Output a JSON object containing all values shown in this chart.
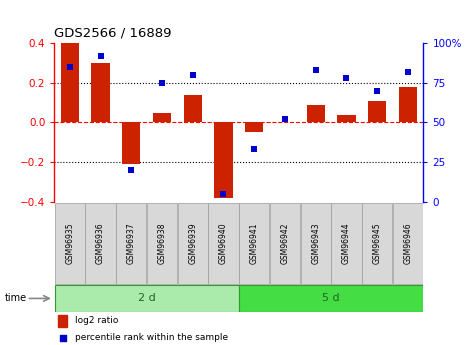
{
  "title": "GDS2566 / 16889",
  "samples": [
    "GSM96935",
    "GSM96936",
    "GSM96937",
    "GSM96938",
    "GSM96939",
    "GSM96940",
    "GSM96941",
    "GSM96942",
    "GSM96943",
    "GSM96944",
    "GSM96945",
    "GSM96946"
  ],
  "log2_ratio": [
    0.4,
    0.3,
    -0.21,
    0.05,
    0.14,
    -0.38,
    -0.05,
    0.0,
    0.09,
    0.04,
    0.11,
    0.18
  ],
  "percentile_rank": [
    85,
    92,
    20,
    75,
    80,
    5,
    33,
    52,
    83,
    78,
    70,
    82
  ],
  "groups": [
    {
      "label": "2 d",
      "start": 0,
      "end": 6,
      "color": "#aaeaaa"
    },
    {
      "label": "5 d",
      "start": 6,
      "end": 12,
      "color": "#44dd44"
    }
  ],
  "bar_color": "#CC2200",
  "dot_color": "#0000CC",
  "ylim_left": [
    -0.4,
    0.4
  ],
  "ylim_right": [
    0,
    100
  ],
  "yticks_left": [
    -0.4,
    -0.2,
    0.0,
    0.2,
    0.4
  ],
  "yticks_right": [
    0,
    25,
    50,
    75,
    100
  ],
  "ytick_labels_right": [
    "0",
    "25",
    "50",
    "75",
    "100%"
  ],
  "time_label": "time",
  "legend_log2": "log2 ratio",
  "legend_pct": "percentile rank within the sample",
  "fig_width": 4.73,
  "fig_height": 3.45,
  "dpi": 100
}
